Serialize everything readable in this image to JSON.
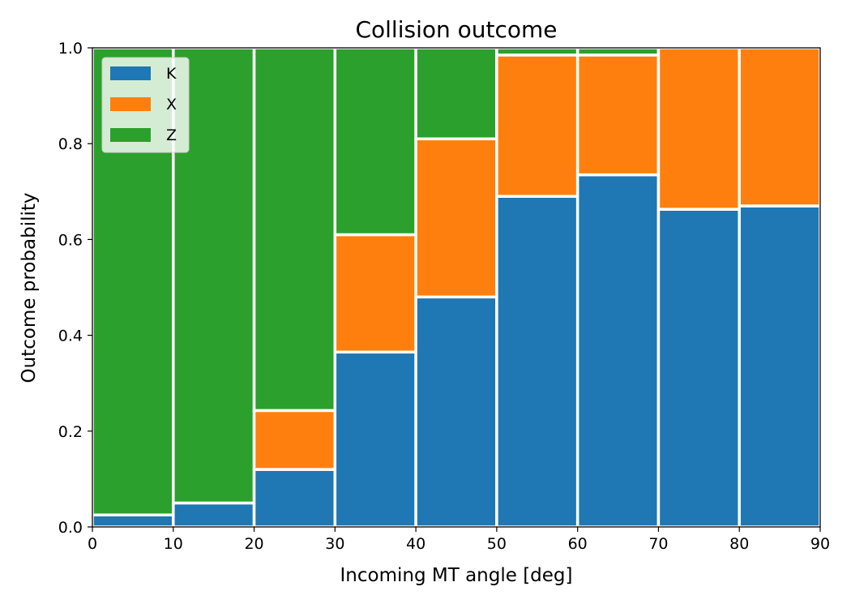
{
  "chart_data": {
    "type": "bar",
    "stacked": true,
    "title": "Collision outcome",
    "xlabel": "Incoming MT angle [deg]",
    "ylabel": "Outcome probability",
    "bin_edges": [
      0,
      10,
      20,
      30,
      40,
      50,
      60,
      70,
      80,
      90
    ],
    "xlim": [
      0,
      90
    ],
    "ylim": [
      0,
      1.0
    ],
    "xticks": [
      0,
      10,
      20,
      30,
      40,
      50,
      60,
      70,
      80,
      90
    ],
    "yticks": [
      0.0,
      0.2,
      0.4,
      0.6,
      0.8,
      1.0
    ],
    "xtick_labels": [
      "0",
      "10",
      "20",
      "30",
      "40",
      "50",
      "60",
      "70",
      "80",
      "90"
    ],
    "ytick_labels": [
      "0.0",
      "0.2",
      "0.4",
      "0.6",
      "0.8",
      "1.0"
    ],
    "grid": false,
    "legend_position": "top-left",
    "series": [
      {
        "name": "K",
        "color": "#1f77b4",
        "values": [
          0.025,
          0.05,
          0.12,
          0.365,
          0.48,
          0.69,
          0.735,
          0.663,
          0.67
        ]
      },
      {
        "name": "X",
        "color": "#ff7f0e",
        "values": [
          0.0,
          0.0,
          0.123,
          0.245,
          0.33,
          0.295,
          0.25,
          0.337,
          0.33
        ]
      },
      {
        "name": "Z",
        "color": "#2ca02c",
        "values": [
          0.975,
          0.95,
          0.757,
          0.39,
          0.19,
          0.015,
          0.015,
          0.0,
          0.0
        ]
      }
    ]
  }
}
